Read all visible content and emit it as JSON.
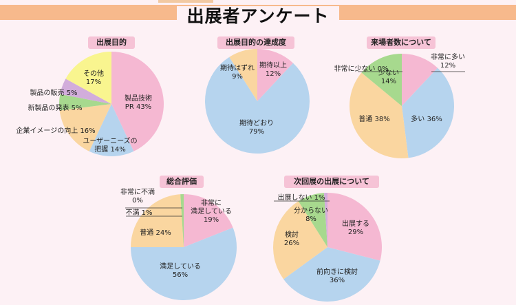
{
  "page": {
    "title": "出展者アンケート"
  },
  "chart_data": [
    {
      "type": "pie",
      "title": "出展目的",
      "slices": [
        {
          "label": [
            "製品技術",
            "PR 43%"
          ],
          "value": 43,
          "color": "#f5b8d2"
        },
        {
          "label": [
            "ユーザーニーズの",
            "把握 14%"
          ],
          "value": 14,
          "color": "#b6d4ee"
        },
        {
          "label": [
            "企業イメージの向上 16%"
          ],
          "value": 16,
          "color": "#fad6a0"
        },
        {
          "label": [
            "新製品の発表 5%"
          ],
          "value": 5,
          "color": "#a7d98e"
        },
        {
          "label": [
            "製品の販売 5%"
          ],
          "value": 5,
          "color": "#d2addb"
        },
        {
          "label": [
            "その他",
            "17%"
          ],
          "value": 17,
          "color": "#f9f58f"
        }
      ]
    },
    {
      "type": "pie",
      "title": "出展目的の達成度",
      "slices": [
        {
          "label": [
            "期待以上",
            "12%"
          ],
          "value": 12,
          "color": "#f5b8d2"
        },
        {
          "label": [
            "期待どおり",
            "79%"
          ],
          "value": 79,
          "color": "#b6d4ee"
        },
        {
          "label": [
            "期待はずれ",
            "9%"
          ],
          "value": 9,
          "color": "#fad6a0"
        }
      ]
    },
    {
      "type": "pie",
      "title": "来場者数について",
      "slices": [
        {
          "label": [
            "非常に多い",
            "12%"
          ],
          "value": 12,
          "color": "#f5b8d2"
        },
        {
          "label": [
            "多い 36%"
          ],
          "value": 36,
          "color": "#b6d4ee"
        },
        {
          "label": [
            "普通 38%"
          ],
          "value": 38,
          "color": "#fad6a0"
        },
        {
          "label": [
            "少ない",
            "14%"
          ],
          "value": 14,
          "color": "#a7d98e"
        },
        {
          "label": [
            "非常に少ない 0%"
          ],
          "value": 0,
          "color": "#d2addb"
        }
      ]
    },
    {
      "type": "pie",
      "title": "総合評価",
      "slices": [
        {
          "label": [
            "非常に",
            "満足している",
            "19%"
          ],
          "value": 19,
          "color": "#f5b8d2"
        },
        {
          "label": [
            "満足している",
            "56%"
          ],
          "value": 56,
          "color": "#b6d4ee"
        },
        {
          "label": [
            "普通 24%"
          ],
          "value": 24,
          "color": "#fad6a0"
        },
        {
          "label": [
            "不満 1%"
          ],
          "value": 1,
          "color": "#a7d98e"
        },
        {
          "label": [
            "非常に不満",
            "0%"
          ],
          "value": 0,
          "color": "#d2addb"
        }
      ]
    },
    {
      "type": "pie",
      "title": "次回展の出展について",
      "slices": [
        {
          "label": [
            "出展する",
            "29%"
          ],
          "value": 29,
          "color": "#f5b8d2"
        },
        {
          "label": [
            "前向きに検討",
            "36%"
          ],
          "value": 36,
          "color": "#b6d4ee"
        },
        {
          "label": [
            "検討",
            "26%"
          ],
          "value": 26,
          "color": "#fad6a0"
        },
        {
          "label": [
            "分からない",
            "8%"
          ],
          "value": 8,
          "color": "#a7d98e"
        },
        {
          "label": [
            "出展しない 1%"
          ],
          "value": 1,
          "color": "#d2addb"
        }
      ]
    }
  ]
}
